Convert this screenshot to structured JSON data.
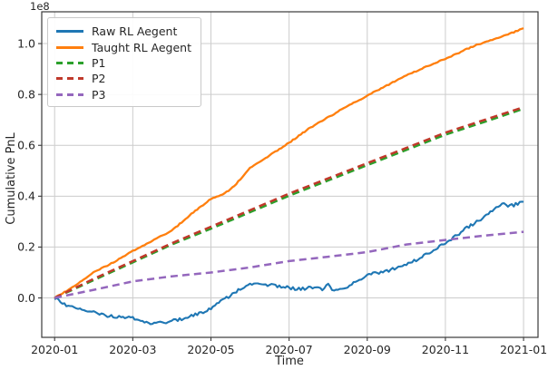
{
  "chart_data": {
    "type": "line",
    "title": "",
    "xlabel": "Time",
    "ylabel": "Cumulative PnL",
    "y_axis_multiplier_label": "1e8",
    "x_tick_labels": [
      "2020-01",
      "2020-03",
      "2020-05",
      "2020-07",
      "2020-09",
      "2020-11",
      "2021-01"
    ],
    "x_tick_months": [
      0,
      2,
      4,
      6,
      8,
      10,
      12
    ],
    "y_tick_labels": [
      "0.0",
      "0.2",
      "0.4",
      "0.6",
      "0.8",
      "1.0"
    ],
    "y_tick_values": [
      0.0,
      0.2,
      0.4,
      0.6,
      0.8,
      1.0
    ],
    "xlim_months": [
      -0.33,
      12.37
    ],
    "ylim": [
      -0.155,
      1.125
    ],
    "grid": true,
    "legend_position": "upper-left",
    "colors": {
      "grid": "#cccccc",
      "spine": "#3a3a3a",
      "text": "#262626",
      "background": "#ffffff"
    },
    "series": [
      {
        "name": "Raw RL Aegent",
        "color": "#1f77b4",
        "line_style": "solid",
        "line_width": 2.1,
        "noise": 0.006,
        "x_months": [
          0,
          0.25,
          0.5,
          0.75,
          1,
          1.25,
          1.5,
          1.75,
          2,
          2.25,
          2.5,
          2.75,
          3,
          3.25,
          3.5,
          3.75,
          4,
          4.25,
          4.5,
          4.75,
          5,
          5.25,
          5.5,
          5.75,
          6,
          6.3,
          6.6,
          6.85,
          7,
          7.1,
          7.3,
          7.5,
          7.75,
          8,
          8.5,
          9,
          9.5,
          10,
          10.5,
          11,
          11.3,
          11.45,
          11.6,
          11.75,
          12
        ],
        "values": [
          0,
          -0.025,
          -0.04,
          -0.05,
          -0.058,
          -0.068,
          -0.072,
          -0.074,
          -0.078,
          -0.09,
          -0.1,
          -0.097,
          -0.09,
          -0.082,
          -0.072,
          -0.058,
          -0.04,
          -0.015,
          0.01,
          0.035,
          0.05,
          0.055,
          0.05,
          0.046,
          0.04,
          0.034,
          0.042,
          0.033,
          0.05,
          0.036,
          0.03,
          0.042,
          0.07,
          0.09,
          0.105,
          0.13,
          0.17,
          0.215,
          0.27,
          0.32,
          0.355,
          0.37,
          0.36,
          0.365,
          0.378
        ]
      },
      {
        "name": "Taught RL Aegent",
        "color": "#ff7f0e",
        "line_style": "solid",
        "line_width": 2.3,
        "noise": 0.002,
        "x_months": [
          0,
          0.5,
          1,
          1.5,
          2,
          2.5,
          3,
          3.5,
          4,
          4.3,
          4.6,
          5,
          5.5,
          6,
          6.5,
          7,
          7.5,
          8,
          8.5,
          9,
          9.3,
          9.6,
          10,
          10.5,
          10.8,
          11,
          11.5,
          12
        ],
        "values": [
          0,
          0.045,
          0.1,
          0.14,
          0.185,
          0.225,
          0.265,
          0.33,
          0.39,
          0.405,
          0.44,
          0.51,
          0.56,
          0.61,
          0.665,
          0.71,
          0.755,
          0.795,
          0.835,
          0.875,
          0.895,
          0.915,
          0.94,
          0.975,
          0.995,
          1.005,
          1.03,
          1.06
        ]
      },
      {
        "name": "P1",
        "color": "#2ca02c",
        "line_style": "dashed",
        "line_width": 2.5,
        "noise": 0,
        "x_months": [
          0,
          1,
          2,
          3,
          4,
          5,
          6,
          7,
          8,
          9,
          10,
          11,
          12
        ],
        "values": [
          0,
          0.07,
          0.14,
          0.21,
          0.272,
          0.337,
          0.402,
          0.462,
          0.522,
          0.582,
          0.642,
          0.692,
          0.744
        ]
      },
      {
        "name": "P2",
        "color": "#c0392b",
        "line_style": "dashed",
        "line_width": 2.5,
        "noise": 0,
        "x_months": [
          0,
          1,
          2,
          3,
          4,
          5,
          6,
          7,
          8,
          9,
          10,
          11,
          12
        ],
        "values": [
          0,
          0.075,
          0.145,
          0.215,
          0.28,
          0.345,
          0.41,
          0.47,
          0.53,
          0.59,
          0.65,
          0.7,
          0.75
        ]
      },
      {
        "name": "P3",
        "color": "#9467bd",
        "line_style": "dashed",
        "line_width": 2.5,
        "noise": 0,
        "x_months": [
          0,
          1,
          2,
          3,
          4,
          5,
          6,
          7,
          8,
          9,
          10,
          11,
          12
        ],
        "values": [
          0,
          0.032,
          0.065,
          0.085,
          0.1,
          0.12,
          0.145,
          0.162,
          0.18,
          0.21,
          0.228,
          0.245,
          0.26
        ]
      }
    ]
  }
}
